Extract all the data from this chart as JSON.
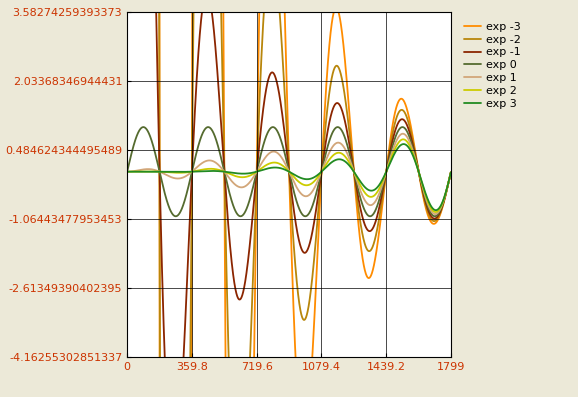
{
  "x_min": 0,
  "x_max": 1799,
  "x_ticks": [
    0,
    359.8,
    719.6,
    1079.4,
    1439.2,
    1799
  ],
  "y_min": -4.16255302851337,
  "y_max": 3.58274259393373,
  "y_ticks": [
    3.58274259393373,
    2.03368346944431,
    0.484624344495489,
    -1.06443477953453,
    -2.61349390402395,
    -4.16255302851337
  ],
  "y_tick_labels": [
    "3.58274259393373",
    "2.03368346944431",
    "0.484624344495489",
    "-1.06443477953453",
    "-2.61349390402395",
    "-4.16255302851337"
  ],
  "exponents": [
    -3,
    -2,
    -1,
    0,
    1,
    2,
    3
  ],
  "legend_labels": [
    "exp -3",
    "exp -2",
    "exp -1",
    "exp 0",
    "exp 1",
    "exp 2",
    "exp 3"
  ],
  "colors": [
    "#FF8C00",
    "#B8860B",
    "#8B2500",
    "#556B2F",
    "#D2A679",
    "#CCCC00",
    "#228B22"
  ],
  "background_color": "#FFFFFF",
  "grid": true,
  "n_points": 5000,
  "freq_factor": 0.01745329,
  "x_start": 1.0,
  "x_ref": 1799.0
}
